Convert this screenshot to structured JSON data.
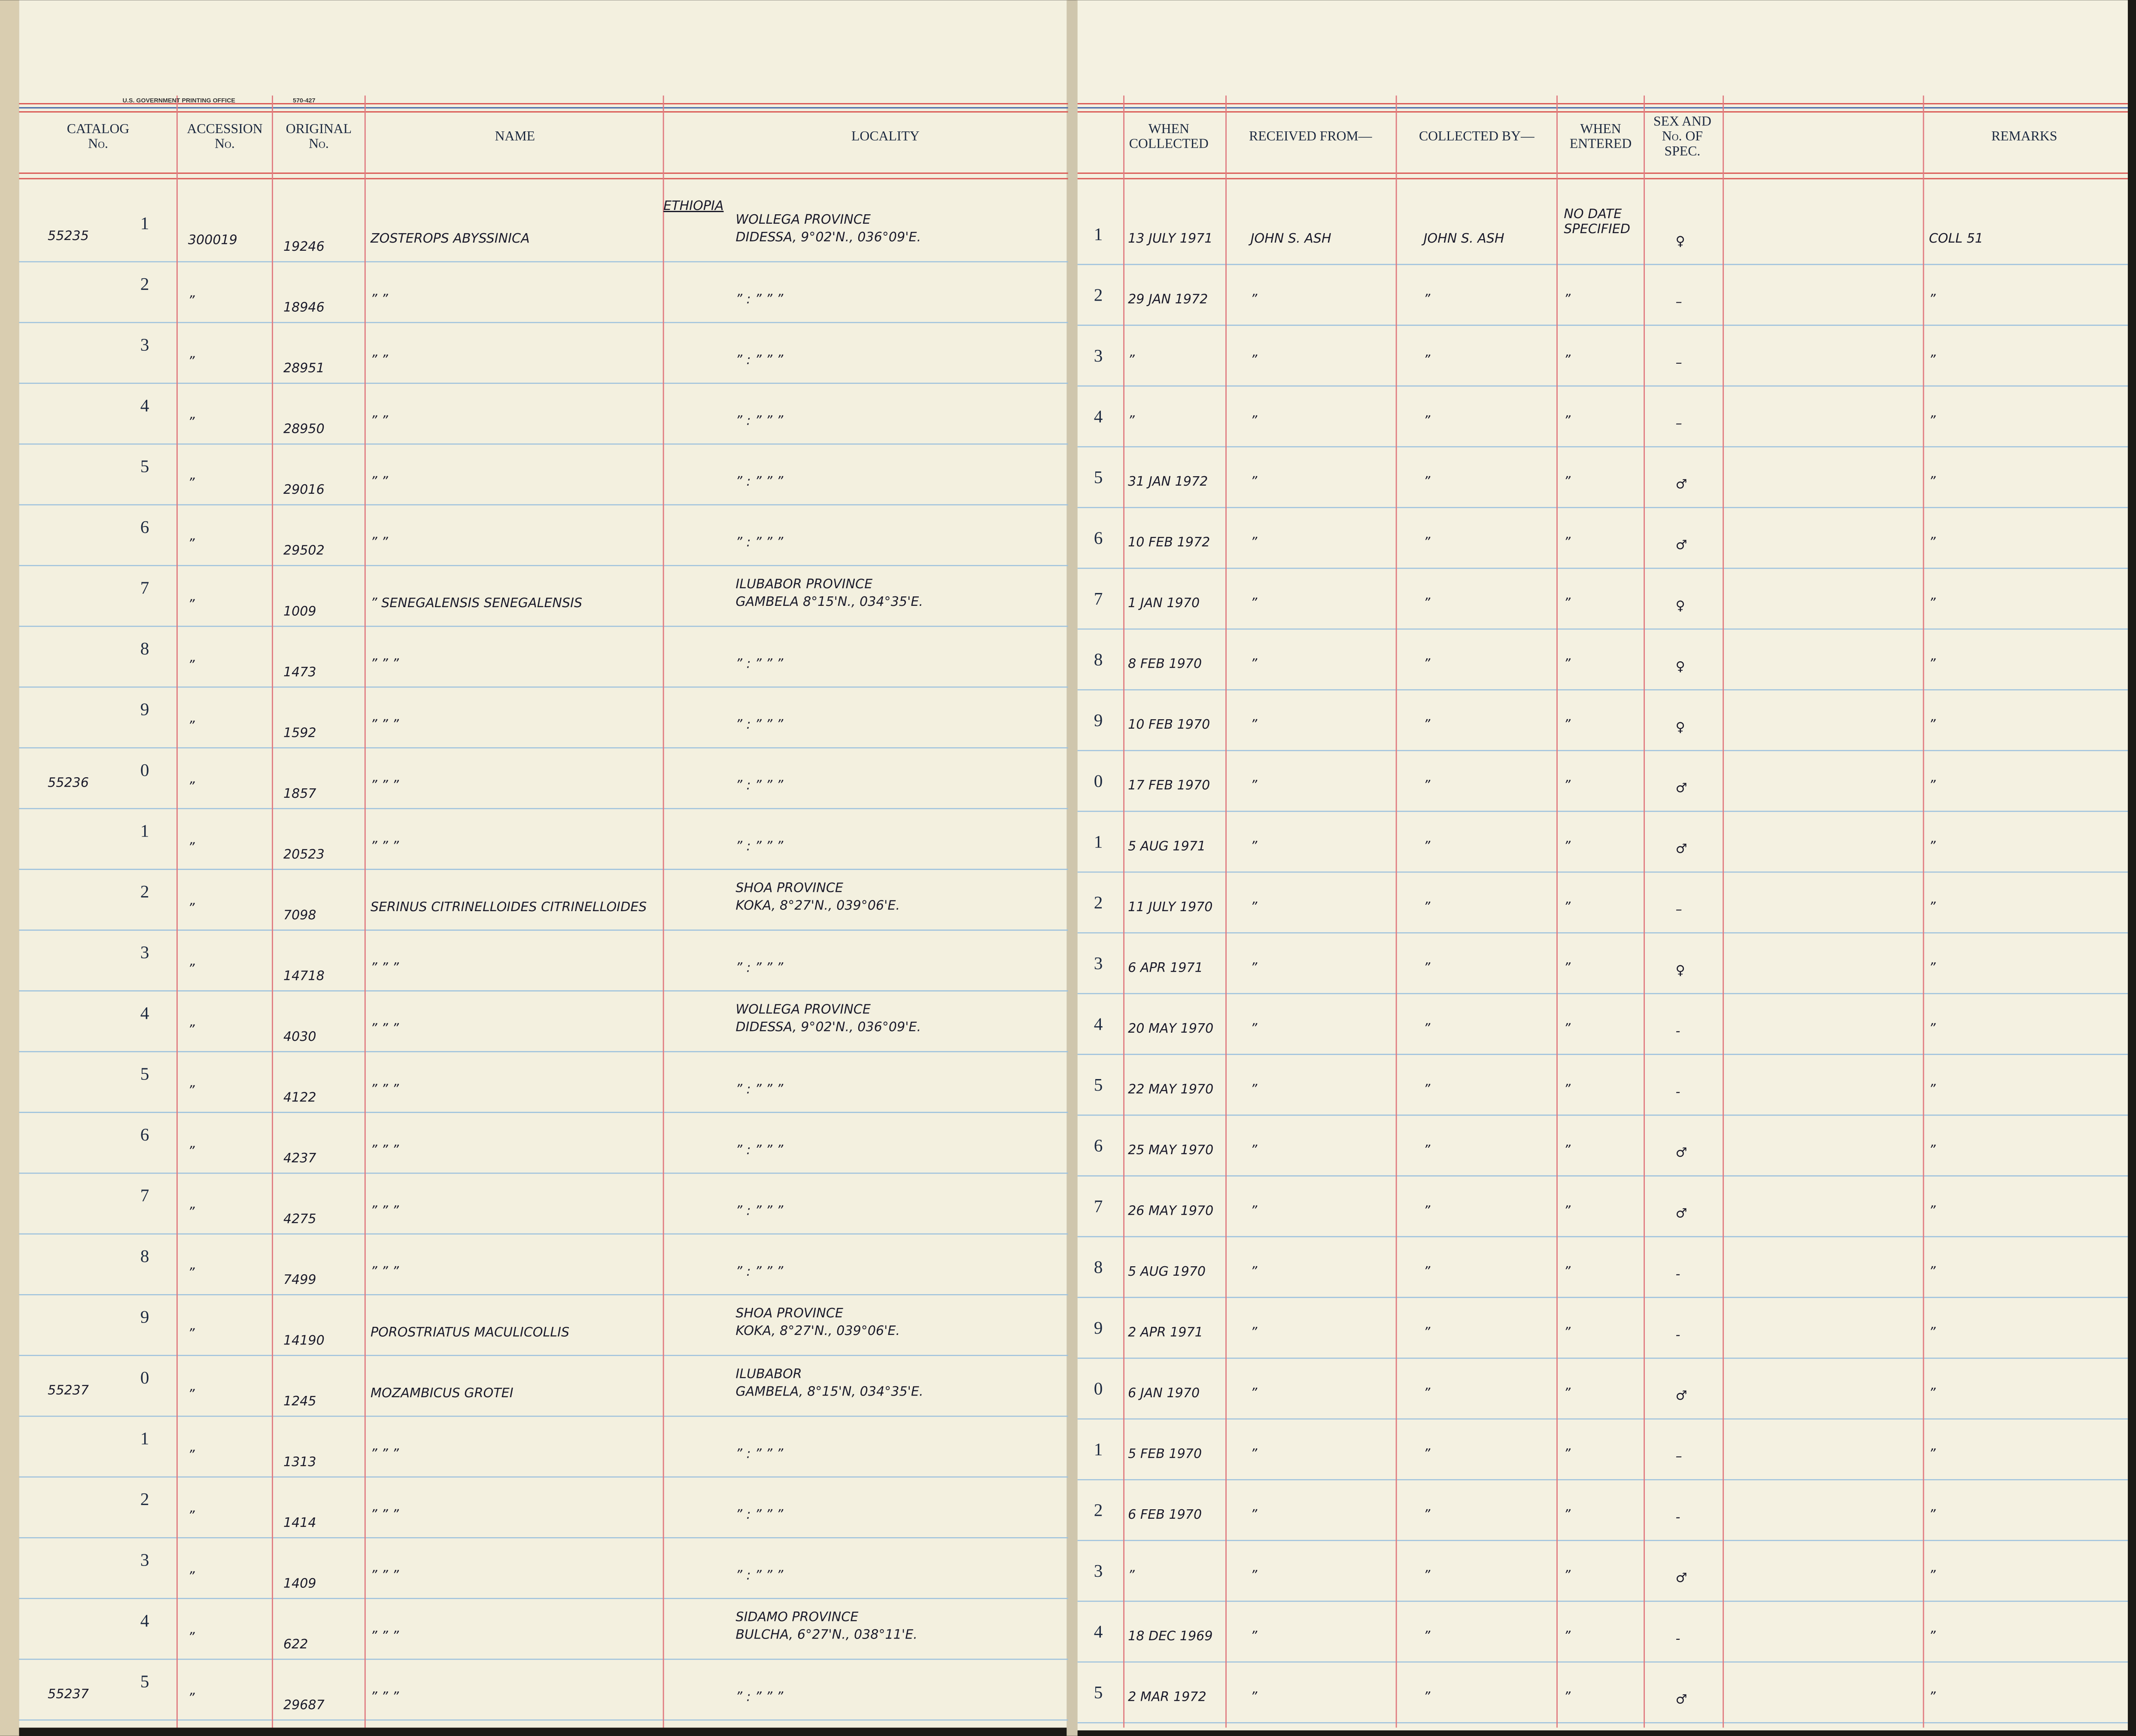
{
  "header": {
    "printer": "U.S. GOVERNMENT PRINTING OFFICE",
    "form": "570-427",
    "columns": {
      "catalog": [
        "CATALOG",
        "No."
      ],
      "accession": [
        "ACCESSION",
        "No."
      ],
      "original": [
        "ORIGINAL",
        "No."
      ],
      "name": [
        "NAME"
      ],
      "locality": [
        "LOCALITY"
      ],
      "when_collected": [
        "WHEN",
        "COLLECTED"
      ],
      "received_from": [
        "RECEIVED FROM—"
      ],
      "collected_by": [
        "COLLECTED BY—"
      ],
      "when_entered": [
        "WHEN",
        "ENTERED"
      ],
      "sex": [
        "SEX AND",
        "No. OF",
        "SPEC."
      ],
      "remarks": [
        "REMARKS"
      ]
    }
  },
  "rows": [
    {
      "catalog": "55235",
      "digit": "1",
      "accession": "300019",
      "original": "19246",
      "name": "ZOSTEROPS ABYSSINICA",
      "country": "ETHIOPIA",
      "locality": [
        "WOLLEGA PROVINCE",
        "DIDESSA, 9°02'N., 036°09'E."
      ],
      "when_collected": "13 JULY 1971",
      "received_from": "JOHN S. ASH",
      "collected_by": "JOHN S. ASH",
      "when_entered": [
        "NO DATE",
        "SPECIFIED"
      ],
      "sex": "♀",
      "remarks": "COLL 51"
    },
    {
      "digit": "2",
      "accession": "”",
      "original": "18946",
      "name": "”     ”",
      "locality": [
        "”  :  ”   ”   ”"
      ],
      "when_collected": "29 JAN 1972",
      "received_from": "”",
      "collected_by": "”",
      "when_entered": [
        "”"
      ],
      "sex": "–",
      "remarks": "”"
    },
    {
      "digit": "3",
      "accession": "”",
      "original": "28951",
      "name": "”     ”",
      "locality": [
        "”  :  ”   ”   ”"
      ],
      "when_collected": "”",
      "received_from": "”",
      "collected_by": "”",
      "when_entered": [
        "”"
      ],
      "sex": "–",
      "remarks": "”"
    },
    {
      "digit": "4",
      "accession": "”",
      "original": "28950",
      "name": "”     ”",
      "locality": [
        "”  :  ”   ”   ”"
      ],
      "when_collected": "”",
      "received_from": "”",
      "collected_by": "”",
      "when_entered": [
        "”"
      ],
      "sex": "–",
      "remarks": "”"
    },
    {
      "digit": "5",
      "accession": "”",
      "original": "29016",
      "name": "”     ”",
      "locality": [
        "”  :  ”   ”   ”"
      ],
      "when_collected": "31 JAN 1972",
      "received_from": "”",
      "collected_by": "”",
      "when_entered": [
        "”"
      ],
      "sex": "♂",
      "remarks": "”"
    },
    {
      "digit": "6",
      "accession": "”",
      "original": "29502",
      "name": "”     ”",
      "locality": [
        "”  :  ”   ”   ”"
      ],
      "when_collected": "10 FEB 1972",
      "received_from": "”",
      "collected_by": "”",
      "when_entered": [
        "”"
      ],
      "sex": "♂",
      "remarks": "”"
    },
    {
      "digit": "7",
      "accession": "”",
      "original": "1009",
      "name": "”   SENEGALENSIS SENEGALENSIS",
      "locality": [
        "ILUBABOR PROVINCE",
        "GAMBELA 8°15'N., 034°35'E."
      ],
      "when_collected": "1 JAN 1970",
      "received_from": "”",
      "collected_by": "”",
      "when_entered": [
        "”"
      ],
      "sex": "♀",
      "remarks": "”"
    },
    {
      "digit": "8",
      "accession": "”",
      "original": "1473",
      "name": "”     ”     ”",
      "locality": [
        "”  :  ”   ”   ”"
      ],
      "when_collected": "8 FEB 1970",
      "received_from": "”",
      "collected_by": "”",
      "when_entered": [
        "”"
      ],
      "sex": "♀",
      "remarks": "”"
    },
    {
      "digit": "9",
      "accession": "”",
      "original": "1592",
      "name": "”     ”     ”",
      "locality": [
        "”  :  ”   ”   ”"
      ],
      "when_collected": "10 FEB 1970",
      "received_from": "”",
      "collected_by": "”",
      "when_entered": [
        "”"
      ],
      "sex": "♀",
      "remarks": "”"
    },
    {
      "catalog": "55236",
      "digit": "0",
      "accession": "”",
      "original": "1857",
      "name": "”     ”     ”",
      "locality": [
        "”  :  ”   ”   ”"
      ],
      "when_collected": "17 FEB 1970",
      "received_from": "”",
      "collected_by": "”",
      "when_entered": [
        "”"
      ],
      "sex": "♂",
      "remarks": "”"
    },
    {
      "digit": "1",
      "accession": "”",
      "original": "20523",
      "name": "”     ”     ”",
      "locality": [
        "”  :  ”   ”   ”"
      ],
      "when_collected": "5 AUG 1971",
      "received_from": "”",
      "collected_by": "”",
      "when_entered": [
        "”"
      ],
      "sex": "♂",
      "remarks": "”"
    },
    {
      "digit": "2",
      "accession": "”",
      "original": "7098",
      "name": "SERINUS CITRINELLOIDES CITRINELLOIDES",
      "locality": [
        "SHOA PROVINCE",
        "KOKA, 8°27'N., 039°06'E."
      ],
      "when_collected": "11 JULY 1970",
      "received_from": "”",
      "collected_by": "”",
      "when_entered": [
        "”"
      ],
      "sex": "–",
      "remarks": "”"
    },
    {
      "digit": "3",
      "accession": "”",
      "original": "14718",
      "name": "”     ”     ”",
      "locality": [
        "”  :  ”   ”   ”"
      ],
      "when_collected": "6 APR 1971",
      "received_from": "”",
      "collected_by": "”",
      "when_entered": [
        "”"
      ],
      "sex": "♀",
      "remarks": "”"
    },
    {
      "digit": "4",
      "accession": "”",
      "original": "4030",
      "name": "”     ”     ”",
      "locality": [
        "WOLLEGA PROVINCE",
        "DIDESSA, 9°02'N., 036°09'E."
      ],
      "when_collected": "20 MAY 1970",
      "received_from": "”",
      "collected_by": "”",
      "when_entered": [
        "”"
      ],
      "sex": "-",
      "remarks": "”"
    },
    {
      "digit": "5",
      "accession": "”",
      "original": "4122",
      "name": "”     ”     ”",
      "locality": [
        "”  :  ”   ”   ”"
      ],
      "when_collected": "22 MAY 1970",
      "received_from": "”",
      "collected_by": "”",
      "when_entered": [
        "”"
      ],
      "sex": "-",
      "remarks": "”"
    },
    {
      "digit": "6",
      "accession": "”",
      "original": "4237",
      "name": "”     ”     ”",
      "locality": [
        "”  :  ”   ”   ”"
      ],
      "when_collected": "25 MAY 1970",
      "received_from": "”",
      "collected_by": "”",
      "when_entered": [
        "”"
      ],
      "sex": "♂",
      "remarks": "”"
    },
    {
      "digit": "7",
      "accession": "”",
      "original": "4275",
      "name": "”     ”     ”",
      "locality": [
        "”  :  ”   ”   ”"
      ],
      "when_collected": "26 MAY 1970",
      "received_from": "”",
      "collected_by": "”",
      "when_entered": [
        "”"
      ],
      "sex": "♂",
      "remarks": "”"
    },
    {
      "digit": "8",
      "accession": "”",
      "original": "7499",
      "name": "”     ”     ”",
      "locality": [
        "”  :  ”   ”   ”"
      ],
      "when_collected": "5 AUG 1970",
      "received_from": "”",
      "collected_by": "”",
      "when_entered": [
        "”"
      ],
      "sex": "-",
      "remarks": "”"
    },
    {
      "digit": "9",
      "accession": "”",
      "original": "14190",
      "name": "POROSTRIATUS MACULICOLLIS",
      "locality": [
        "SHOA PROVINCE",
        "KOKA, 8°27'N., 039°06'E."
      ],
      "when_collected": "2 APR 1971",
      "received_from": "”",
      "collected_by": "”",
      "when_entered": [
        "”"
      ],
      "sex": "-",
      "remarks": "”"
    },
    {
      "catalog": "55237",
      "digit": "0",
      "accession": "”",
      "original": "1245",
      "name": "MOZAMBICUS GROTEI",
      "locality": [
        "ILUBABOR",
        "GAMBELA, 8°15'N, 034°35'E."
      ],
      "when_collected": "6 JAN 1970",
      "received_from": "”",
      "collected_by": "”",
      "when_entered": [
        "”"
      ],
      "sex": "♂",
      "remarks": "”"
    },
    {
      "digit": "1",
      "accession": "”",
      "original": "1313",
      "name": "”     ”     ”",
      "locality": [
        "”  :  ”   ”   ”"
      ],
      "when_collected": "5 FEB 1970",
      "received_from": "”",
      "collected_by": "”",
      "when_entered": [
        "”"
      ],
      "sex": "–",
      "remarks": "”"
    },
    {
      "digit": "2",
      "accession": "”",
      "original": "1414",
      "name": "”     ”     ”",
      "locality": [
        "”  :  ”   ”   ”"
      ],
      "when_collected": "6 FEB 1970",
      "received_from": "”",
      "collected_by": "”",
      "when_entered": [
        "”"
      ],
      "sex": "-",
      "remarks": "”"
    },
    {
      "digit": "3",
      "accession": "”",
      "original": "1409",
      "name": "”     ”     ”",
      "locality": [
        "”  :  ”   ”   ”"
      ],
      "when_collected": "”",
      "received_from": "”",
      "collected_by": "”",
      "when_entered": [
        "”"
      ],
      "sex": "♂",
      "remarks": "”"
    },
    {
      "digit": "4",
      "accession": "”",
      "original": "622",
      "name": "”     ”     ”",
      "locality": [
        "SIDAMO PROVINCE",
        "BULCHA, 6°27'N., 038°11'E."
      ],
      "when_collected": "18 DEC 1969",
      "received_from": "”",
      "collected_by": "”",
      "when_entered": [
        "”"
      ],
      "sex": "-",
      "remarks": "”"
    },
    {
      "catalog": "55237",
      "digit": "5",
      "accession": "”",
      "original": "29687",
      "name": "”     ”     ”",
      "locality": [
        "”  :  ”   ”   ”"
      ],
      "when_collected": "2 MAR 1972",
      "received_from": "”",
      "collected_by": "”",
      "when_entered": [
        "”"
      ],
      "sex": "♂",
      "remarks": "”"
    }
  ]
}
